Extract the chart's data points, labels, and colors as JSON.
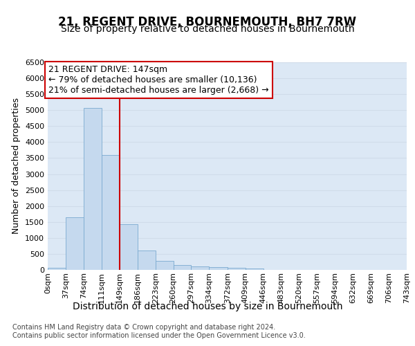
{
  "title": "21, REGENT DRIVE, BOURNEMOUTH, BH7 7RW",
  "subtitle": "Size of property relative to detached houses in Bournemouth",
  "xlabel": "Distribution of detached houses by size in Bournemouth",
  "ylabel": "Number of detached properties",
  "footer_line1": "Contains HM Land Registry data © Crown copyright and database right 2024.",
  "footer_line2": "Contains public sector information licensed under the Open Government Licence v3.0.",
  "annotation_line1": "21 REGENT DRIVE: 147sqm",
  "annotation_line2": "← 79% of detached houses are smaller (10,136)",
  "annotation_line3": "21% of semi-detached houses are larger (2,668) →",
  "bin_edges": [
    0,
    37,
    74,
    111,
    149,
    186,
    223,
    260,
    297,
    334,
    372,
    409,
    446,
    483,
    520,
    557,
    594,
    632,
    669,
    706,
    743
  ],
  "bin_labels": [
    "0sqm",
    "37sqm",
    "74sqm",
    "111sqm",
    "149sqm",
    "186sqm",
    "223sqm",
    "260sqm",
    "297sqm",
    "334sqm",
    "372sqm",
    "409sqm",
    "446sqm",
    "483sqm",
    "520sqm",
    "557sqm",
    "594sqm",
    "632sqm",
    "669sqm",
    "706sqm",
    "743sqm"
  ],
  "bar_heights": [
    60,
    1650,
    5080,
    3600,
    1420,
    610,
    290,
    145,
    110,
    85,
    60,
    45,
    8,
    0,
    0,
    0,
    0,
    0,
    0,
    0
  ],
  "bar_color": "#c5d9ee",
  "bar_edge_color": "#7aaad0",
  "vline_color": "#cc0000",
  "vline_x": 149,
  "ylim": [
    0,
    6500
  ],
  "yticks": [
    0,
    500,
    1000,
    1500,
    2000,
    2500,
    3000,
    3500,
    4000,
    4500,
    5000,
    5500,
    6000,
    6500
  ],
  "grid_color": "#d0dcea",
  "plot_bg_color": "#dce8f5",
  "annotation_box_color": "#ffffff",
  "annotation_box_edge": "#cc0000",
  "title_fontsize": 12,
  "subtitle_fontsize": 10,
  "xlabel_fontsize": 10,
  "ylabel_fontsize": 9,
  "tick_fontsize": 8,
  "annotation_fontsize": 9,
  "footer_fontsize": 7
}
